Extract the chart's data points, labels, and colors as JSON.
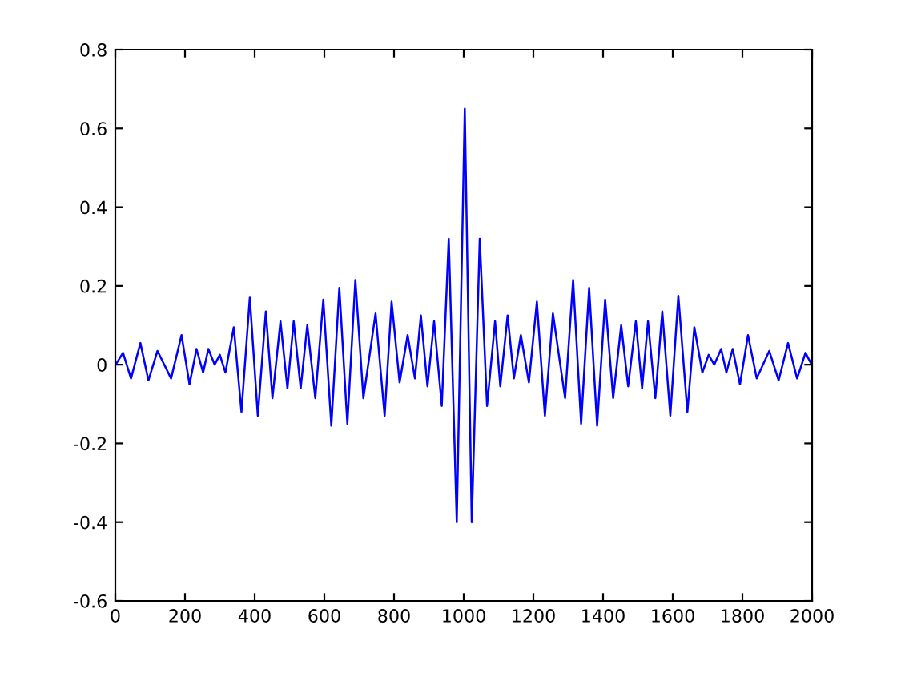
{
  "chart_data": {
    "type": "line",
    "x": [
      1,
      22,
      45,
      72,
      95,
      121,
      160,
      190,
      213,
      233,
      252,
      267,
      285,
      300,
      316,
      340,
      362,
      386,
      409,
      432,
      451,
      474,
      494,
      512,
      532,
      551,
      574,
      597,
      620,
      643,
      666,
      689,
      712,
      747,
      773,
      793,
      816,
      839,
      860,
      877,
      896,
      915,
      937,
      957,
      980,
      1003,
      1023,
      1046,
      1067,
      1090,
      1105,
      1126,
      1144,
      1164,
      1187,
      1210,
      1233,
      1256,
      1291,
      1314,
      1337,
      1360,
      1383,
      1406,
      1429,
      1452,
      1472,
      1494,
      1512,
      1529,
      1550,
      1570,
      1593,
      1616,
      1642,
      1662,
      1685,
      1703,
      1719,
      1739,
      1754,
      1772,
      1793,
      1816,
      1841,
      1877,
      1904,
      1931,
      1957,
      1981,
      1996
    ],
    "series": [
      {
        "color": "#0000ff",
        "values": [
          0,
          0.03,
          -0.035,
          0.055,
          -0.04,
          0.035,
          -0.035,
          0.075,
          -0.05,
          0.04,
          -0.02,
          0.04,
          0,
          0.025,
          -0.02,
          0.095,
          -0.12,
          0.17,
          -0.13,
          0.135,
          -0.085,
          0.11,
          -0.06,
          0.11,
          -0.06,
          0.1,
          -0.085,
          0.165,
          -0.155,
          0.195,
          -0.15,
          0.215,
          -0.085,
          0.13,
          -0.13,
          0.16,
          -0.045,
          0.075,
          -0.035,
          0.125,
          -0.055,
          0.11,
          -0.105,
          0.32,
          -0.4,
          0.65,
          -0.4,
          0.32,
          -0.105,
          0.11,
          -0.055,
          0.125,
          -0.035,
          0.075,
          -0.045,
          0.16,
          -0.13,
          0.13,
          -0.085,
          0.215,
          -0.15,
          0.195,
          -0.155,
          0.165,
          -0.085,
          0.1,
          -0.055,
          0.11,
          -0.06,
          0.11,
          -0.085,
          0.135,
          -0.13,
          0.175,
          -0.12,
          0.095,
          -0.02,
          0.025,
          0,
          0.04,
          -0.02,
          0.04,
          -0.05,
          0.075,
          -0.035,
          0.035,
          -0.04,
          0.055,
          -0.035,
          0.03,
          0.005
        ]
      }
    ],
    "xlim": [
      0,
      2000
    ],
    "xticks": [
      0,
      200,
      400,
      600,
      800,
      1000,
      1200,
      1400,
      1600,
      1800,
      2000
    ],
    "ylim": [
      -0.6,
      0.8
    ],
    "yticks": [
      -0.6,
      -0.4,
      -0.2,
      0,
      0.2,
      0.4,
      0.6,
      0.8
    ],
    "grid": false,
    "marker": "none",
    "line_style": "solid"
  }
}
